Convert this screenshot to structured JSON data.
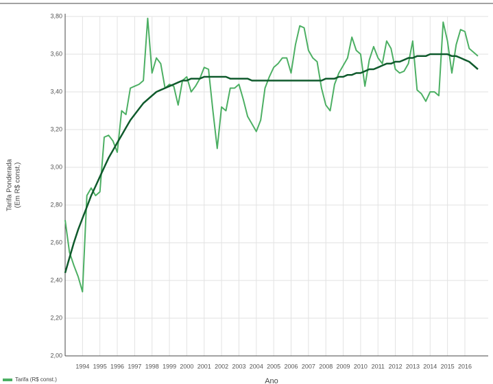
{
  "chart_data": {
    "type": "line",
    "ylabel": [
      "Tarifa Ponderada",
      "(Em R$ const.)"
    ],
    "xlabel": "Ano",
    "categories": [
      null,
      null,
      null,
      null,
      "1994",
      null,
      null,
      null,
      "1995",
      null,
      null,
      null,
      "1996",
      null,
      null,
      null,
      "1997",
      null,
      null,
      null,
      "1998",
      null,
      null,
      null,
      "1999",
      null,
      null,
      null,
      "2000",
      null,
      null,
      null,
      "2001",
      null,
      null,
      null,
      "2002",
      null,
      null,
      null,
      "2003",
      null,
      null,
      null,
      "2004",
      null,
      null,
      null,
      "2005",
      null,
      null,
      null,
      "2006",
      null,
      null,
      null,
      "2007",
      null,
      null,
      null,
      "2008",
      null,
      null,
      null,
      "2009",
      null,
      null,
      null,
      "2010",
      null,
      null,
      null,
      "2011",
      null,
      null,
      null,
      "2012",
      null,
      null,
      null,
      "2013",
      null,
      null,
      null,
      "2014",
      null,
      null,
      null,
      "2015",
      null,
      null,
      null,
      "2016",
      null,
      null,
      null
    ],
    "series": [
      {
        "name": "Tarifa (R$ const.)",
        "color": "#4caf63",
        "width": 2,
        "values": [
          2.72,
          2.55,
          2.48,
          2.42,
          2.34,
          2.85,
          2.89,
          2.85,
          2.87,
          3.16,
          3.17,
          3.14,
          3.08,
          3.3,
          3.28,
          3.42,
          3.43,
          3.44,
          3.46,
          3.79,
          3.5,
          3.58,
          3.55,
          3.42,
          3.44,
          3.43,
          3.33,
          3.46,
          3.48,
          3.4,
          3.43,
          3.47,
          3.53,
          3.52,
          3.3,
          3.1,
          3.32,
          3.3,
          3.42,
          3.42,
          3.44,
          3.36,
          3.27,
          3.23,
          3.19,
          3.25,
          3.42,
          3.48,
          3.53,
          3.55,
          3.58,
          3.58,
          3.5,
          3.65,
          3.75,
          3.74,
          3.62,
          3.58,
          3.56,
          3.42,
          3.33,
          3.3,
          3.44,
          3.5,
          3.54,
          3.58,
          3.69,
          3.62,
          3.6,
          3.43,
          3.57,
          3.64,
          3.58,
          3.55,
          3.67,
          3.63,
          3.52,
          3.5,
          3.51,
          3.55,
          3.67,
          3.41,
          3.39,
          3.35,
          3.4,
          3.4,
          3.38,
          3.77,
          3.67,
          3.5,
          3.65,
          3.73,
          3.72,
          3.63,
          3.61,
          3.59
        ]
      },
      {
        "color": "#0f5a2c",
        "width": 2.5,
        "values": [
          2.44,
          2.52,
          2.6,
          2.67,
          2.73,
          2.79,
          2.85,
          2.9,
          2.95,
          3.0,
          3.05,
          3.09,
          3.13,
          3.17,
          3.21,
          3.25,
          3.28,
          3.31,
          3.34,
          3.36,
          3.38,
          3.4,
          3.41,
          3.42,
          3.43,
          3.44,
          3.45,
          3.46,
          3.46,
          3.47,
          3.47,
          3.47,
          3.48,
          3.48,
          3.48,
          3.48,
          3.48,
          3.48,
          3.47,
          3.47,
          3.47,
          3.47,
          3.47,
          3.46,
          3.46,
          3.46,
          3.46,
          3.46,
          3.46,
          3.46,
          3.46,
          3.46,
          3.46,
          3.46,
          3.46,
          3.46,
          3.46,
          3.46,
          3.46,
          3.46,
          3.47,
          3.47,
          3.47,
          3.48,
          3.48,
          3.49,
          3.49,
          3.5,
          3.5,
          3.51,
          3.52,
          3.52,
          3.53,
          3.54,
          3.55,
          3.55,
          3.56,
          3.56,
          3.57,
          3.58,
          3.58,
          3.59,
          3.59,
          3.59,
          3.6,
          3.6,
          3.6,
          3.6,
          3.6,
          3.59,
          3.59,
          3.58,
          3.57,
          3.56,
          3.54,
          3.52
        ]
      }
    ],
    "ylim": [
      2.0,
      3.8
    ],
    "yticks": [
      {
        "value": 2.0,
        "label": "2,00"
      },
      {
        "value": 2.2,
        "label": "2,20"
      },
      {
        "value": 2.4,
        "label": "2,40"
      },
      {
        "value": 2.6,
        "label": "2,60"
      },
      {
        "value": 2.8,
        "label": "2,80"
      },
      {
        "value": 3.0,
        "label": "3,00"
      },
      {
        "value": 3.2,
        "label": "3,20"
      },
      {
        "value": 3.4,
        "label": "3,40"
      },
      {
        "value": 3.6,
        "label": "3,60"
      },
      {
        "value": 3.8,
        "label": "3,80"
      }
    ],
    "grid": true,
    "legend": "bottom-left"
  }
}
